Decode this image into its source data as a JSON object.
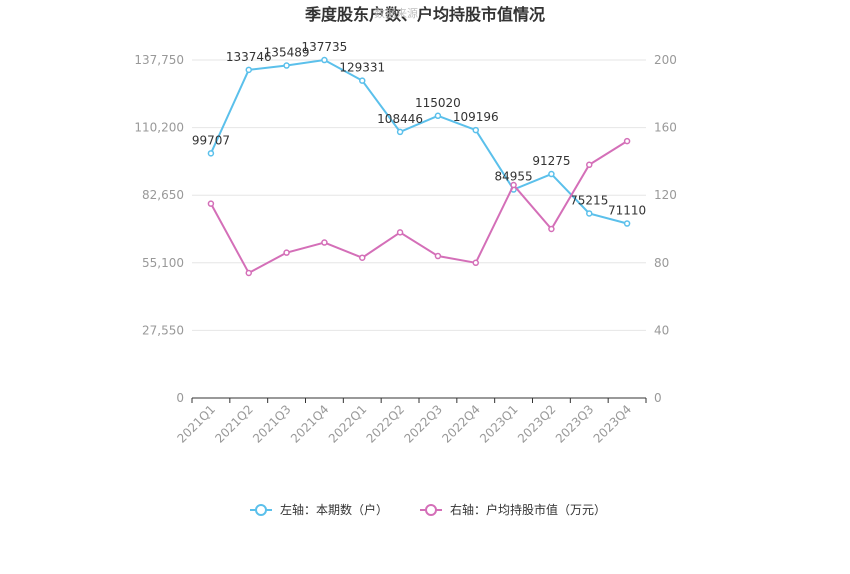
{
  "chart_data": {
    "type": "line",
    "title": "季度股东户数、户均持股市值情况",
    "watermark": "数据来源",
    "categories": [
      "2021Q1",
      "2021Q2",
      "2021Q3",
      "2021Q4",
      "2022Q1",
      "2022Q2",
      "2022Q3",
      "2022Q4",
      "2023Q1",
      "2023Q2",
      "2023Q3",
      "2023Q4"
    ],
    "left_axis": {
      "min": 0,
      "max": 137750,
      "ticks": [
        0,
        27550,
        55100,
        82650,
        110200,
        137750
      ],
      "tick_labels": [
        "0",
        "27,550",
        "55,100",
        "82,650",
        "110,200",
        "137,750"
      ]
    },
    "right_axis": {
      "min": 0,
      "max": 200,
      "ticks": [
        0,
        40,
        80,
        120,
        160,
        200
      ],
      "tick_labels": [
        "0",
        "40",
        "80",
        "120",
        "160",
        "200"
      ]
    },
    "series": [
      {
        "name": "左轴：本期数（户）",
        "axis": "left",
        "color": "#5bc0eb",
        "values": [
          99707,
          133746,
          135489,
          137735,
          129331,
          108446,
          115020,
          109196,
          84955,
          91275,
          75215,
          71110
        ],
        "labels": [
          "99707",
          "133746",
          "135489",
          "137735",
          "129331",
          "108446",
          "115020",
          "109196",
          "84955",
          "91275",
          "75215",
          "71110"
        ]
      },
      {
        "name": "右轴：户均持股市值（万元）",
        "axis": "right",
        "color": "#d46fb8",
        "values": [
          115,
          74,
          86,
          92,
          83,
          98,
          84,
          80,
          126,
          100,
          138,
          152
        ]
      }
    ],
    "grid": true,
    "legend_position": "bottom"
  }
}
